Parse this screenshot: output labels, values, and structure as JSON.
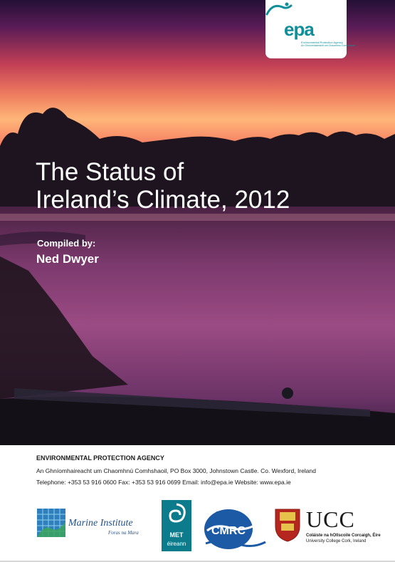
{
  "cover": {
    "title_line1": "The Status of",
    "title_line2": "Ireland’s Climate, 2012",
    "compiled_label": "Compiled by:",
    "author": "Ned Dwyer"
  },
  "epa_logo": {
    "word": "epa",
    "subtitle1": "Environmental Protection Agency",
    "subtitle2": "An Ghníomhaireacht um Chaomhnú Comhshaoil"
  },
  "footer": {
    "agency": "ENVIRONMENTAL PROTECTION AGENCY",
    "address": "An Ghníomhaireacht um Chaomhnú Comhshaoil, PO Box 3000, Johnstown Castle. Co. Wexford, Ireland",
    "contact": "Telephone: +353 53 916 0600   Fax: +353 53 916 0699   Email: info@epa.ie   Website: www.epa.ie"
  },
  "partner_logos": {
    "marine_institute": "Marine Institute",
    "marine_institute_sub": "Foras na Mara",
    "met_eireann": "MET",
    "met_eireann_sub": "éireann",
    "cmrc": "CMRC",
    "ucc": "UCC",
    "ucc_sub1": "Coláiste na hOllscoile Corcaigh, Éire",
    "ucc_sub2": "University College Cork, Ireland"
  },
  "colors": {
    "epa_teal": "#0f8f9a",
    "marine_blue": "#1f4f8c",
    "met_teal": "#0c7c8c",
    "cmrc_blue": "#1c5aa6"
  }
}
